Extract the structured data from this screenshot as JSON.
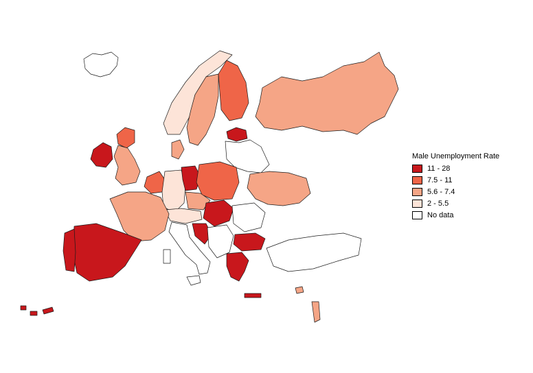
{
  "legend": {
    "title": "Male Unemployment Rate",
    "classes": [
      {
        "label": "11 - 28",
        "color": "#c8171c"
      },
      {
        "label": "7.5 - 11",
        "color": "#ef6548"
      },
      {
        "label": "5.6 - 7.4",
        "color": "#f5a586"
      },
      {
        "label": "2 - 5.5",
        "color": "#fde4d8"
      },
      {
        "label": "No data",
        "color": "#ffffff"
      }
    ]
  },
  "map": {
    "regions": [
      {
        "name": "iceland",
        "class": "No data"
      },
      {
        "name": "ireland",
        "class": "11 - 28"
      },
      {
        "name": "scotland",
        "class": "7.5 - 11"
      },
      {
        "name": "england",
        "class": "5.6 - 7.4"
      },
      {
        "name": "norway",
        "class": "2 - 5.5"
      },
      {
        "name": "sweden",
        "class": "5.6 - 7.4"
      },
      {
        "name": "finland",
        "class": "7.5 - 11"
      },
      {
        "name": "estonia",
        "class": "11 - 28"
      },
      {
        "name": "latvia-lithuania",
        "class": "No data"
      },
      {
        "name": "russia",
        "class": "5.6 - 7.4"
      },
      {
        "name": "denmark",
        "class": "5.6 - 7.4"
      },
      {
        "name": "poland",
        "class": "7.5 - 11"
      },
      {
        "name": "germany-east",
        "class": "11 - 28"
      },
      {
        "name": "germany-west",
        "class": "2 - 5.5"
      },
      {
        "name": "benelux",
        "class": "7.5 - 11"
      },
      {
        "name": "france",
        "class": "5.6 - 7.4"
      },
      {
        "name": "spain",
        "class": "11 - 28"
      },
      {
        "name": "portugal",
        "class": "11 - 28"
      },
      {
        "name": "italy",
        "class": "No data"
      },
      {
        "name": "switzerland-austria",
        "class": "2 - 5.5"
      },
      {
        "name": "czech",
        "class": "5.6 - 7.4"
      },
      {
        "name": "slovakia-hungary",
        "class": "11 - 28"
      },
      {
        "name": "croatia",
        "class": "11 - 28"
      },
      {
        "name": "balkans-west",
        "class": "No data"
      },
      {
        "name": "romania",
        "class": "No data"
      },
      {
        "name": "ukraine",
        "class": "5.6 - 7.4"
      },
      {
        "name": "bulgaria",
        "class": "11 - 28"
      },
      {
        "name": "greece",
        "class": "11 - 28"
      },
      {
        "name": "turkey",
        "class": "No data"
      },
      {
        "name": "cyprus-israel",
        "class": "5.6 - 7.4"
      },
      {
        "name": "canary-islands",
        "class": "11 - 28"
      }
    ]
  }
}
